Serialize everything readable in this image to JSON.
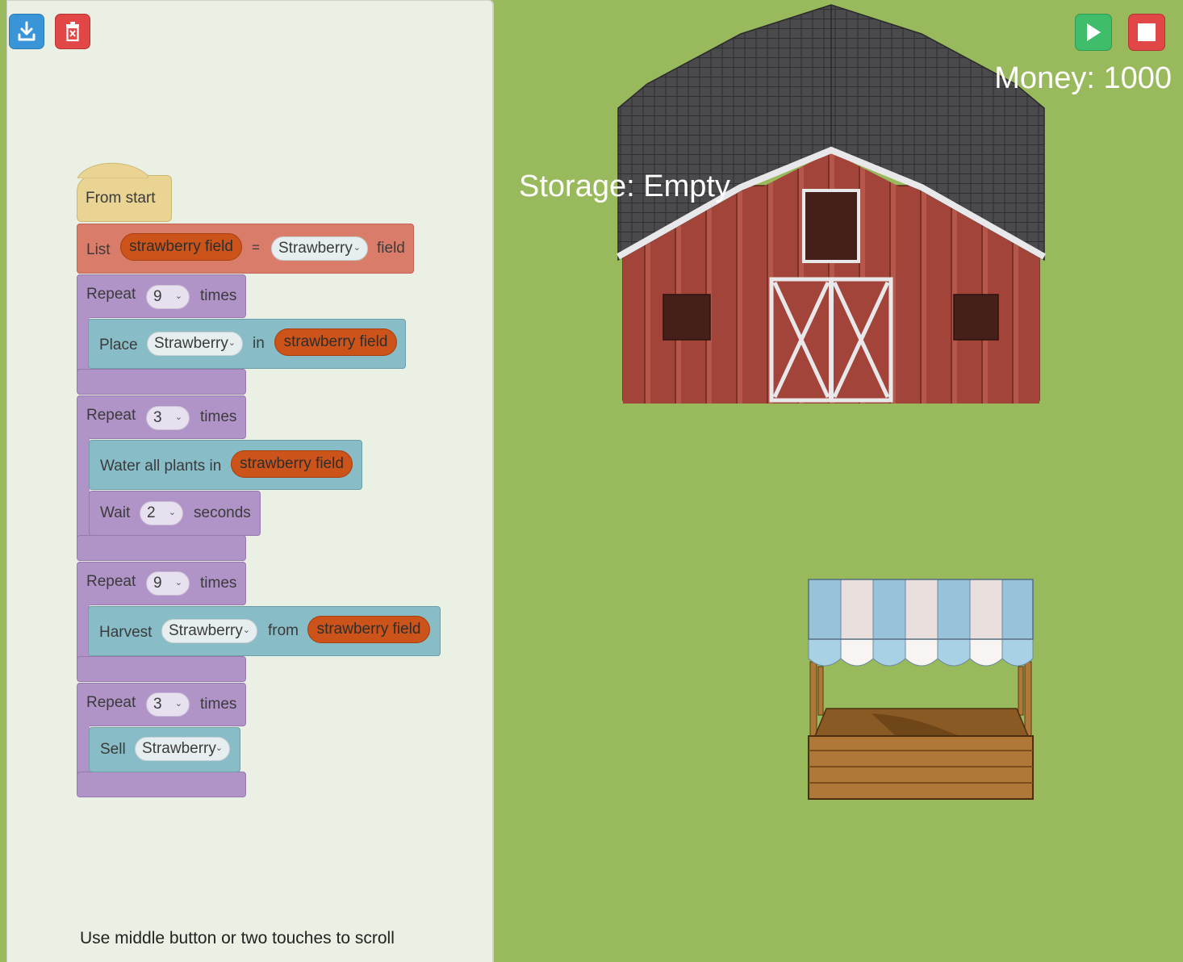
{
  "toolbar": {
    "download_icon": "download-icon",
    "trash_icon": "trash-icon"
  },
  "controls": {
    "play_icon": "play-icon",
    "stop_icon": "stop-icon"
  },
  "hud": {
    "money_label": "Money: 1000",
    "storage_label": "Storage:",
    "storage_value": "Empty"
  },
  "blocks": {
    "hat_label": "From start",
    "list": {
      "label": "List",
      "var": "strawberry field",
      "eq": "=",
      "crop": "Strawberry",
      "suffix": "field"
    },
    "repeat1": {
      "label": "Repeat",
      "count": "9",
      "suffix": "times",
      "place": {
        "label": "Place",
        "crop": "Strawberry",
        "in": "in",
        "var": "strawberry field"
      }
    },
    "repeat2": {
      "label": "Repeat",
      "count": "3",
      "suffix": "times",
      "water": {
        "label": "Water all plants in",
        "var": "strawberry field"
      },
      "wait": {
        "label": "Wait",
        "count": "2",
        "suffix": "seconds"
      }
    },
    "repeat3": {
      "label": "Repeat",
      "count": "9",
      "suffix": "times",
      "harvest": {
        "label": "Harvest",
        "crop": "Strawberry",
        "from": "from",
        "var": "strawberry field"
      }
    },
    "repeat4": {
      "label": "Repeat",
      "count": "3",
      "suffix": "times",
      "sell": {
        "label": "Sell",
        "crop": "Strawberry"
      }
    }
  },
  "workspace": {
    "scroll_hint": "Use middle button or two touches to scroll"
  },
  "colors": {
    "grass": "#98b95c",
    "workspace": "#eaf0e3",
    "barn_red": "#a3443a",
    "roof": "#4a4a4d"
  }
}
